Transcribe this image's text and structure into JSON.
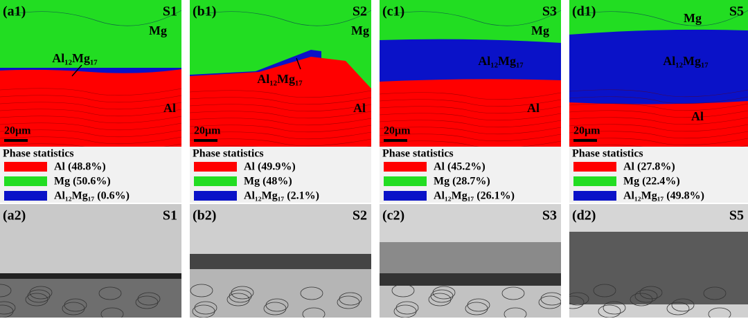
{
  "panels": [
    {
      "map_label": "(a1)",
      "sample": "S1",
      "map_labels": [
        "Mg",
        "Al₁₂Mg₁₇",
        "Al"
      ],
      "scale_bar": "20μm",
      "stats_title": "Phase statistics",
      "legend": [
        "Al (48.8%)",
        "Mg (50.6%)",
        "Al₁₂Mg₁₇ (0.6%)"
      ],
      "image_label": "(a2)",
      "image_sample": "S1"
    },
    {
      "map_label": "(b1)",
      "sample": "S2",
      "map_labels": [
        "Mg",
        "Al₁₂Mg₁₇",
        "Al"
      ],
      "scale_bar": "20μm",
      "stats_title": "Phase statistics",
      "legend": [
        "Al (49.9%)",
        "Mg (48%)",
        "Al₁₂Mg₁₇ (2.1%)"
      ],
      "image_label": "(b2)",
      "image_sample": "S2"
    },
    {
      "map_label": "(c1)",
      "sample": "S3",
      "map_labels": [
        "Mg",
        "Al₁₂Mg₁₇",
        "Al"
      ],
      "scale_bar": "20μm",
      "stats_title": "Phase statistics",
      "legend": [
        "Al (45.2%)",
        "Mg (28.7%)",
        "Al₁₂Mg₁₇ (26.1%)"
      ],
      "image_label": "(c2)",
      "image_sample": "S3"
    },
    {
      "map_label": "(d1)",
      "sample": "S5",
      "map_labels": [
        "Mg",
        "Al₁₂Mg₁₇",
        "Al"
      ],
      "scale_bar": "20μm",
      "stats_title": "Phase statistics",
      "legend": [
        "Al (27.8%)",
        "Mg (22.4%)",
        "Al₁₂Mg₁₇ (49.8%)"
      ],
      "image_label": "(d2)",
      "image_sample": "S5"
    }
  ]
}
